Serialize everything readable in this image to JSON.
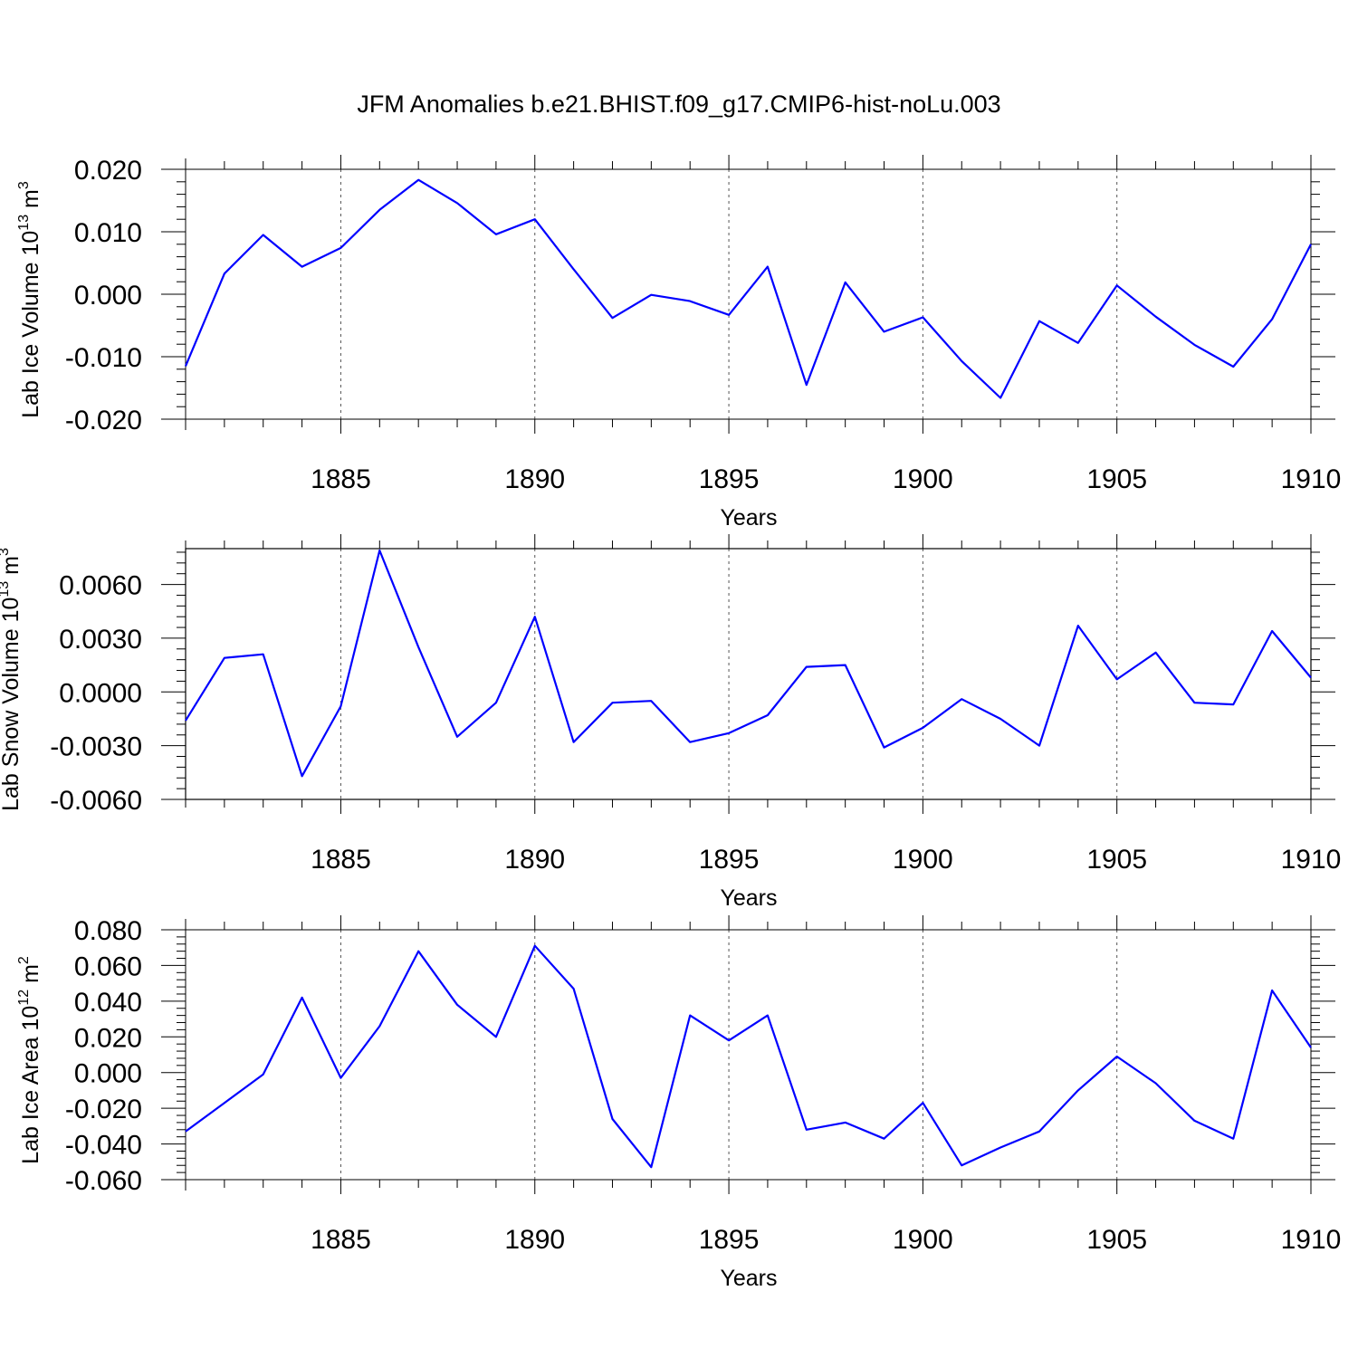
{
  "title": "JFM Anomalies b.e21.BHIST.f09_g17.CMIP6-hist-noLu.003",
  "colors": {
    "series": "#0000ff",
    "axis": "#000000",
    "grid": "#555555"
  },
  "chart_data": [
    {
      "type": "line",
      "xlabel": "Years",
      "ylabel_main": "Lab Ice Volume 10",
      "ylabel_exp": "13",
      "ylabel_unit": " m",
      "ylabel_unit_exp": "3",
      "xlim": [
        1881,
        1910
      ],
      "ylim": [
        -0.02,
        0.02
      ],
      "yticks": [
        "-0.020",
        "-0.010",
        "0.000",
        "0.010",
        "0.020"
      ],
      "ytick_values": [
        -0.02,
        -0.01,
        0.0,
        0.01,
        0.02
      ],
      "xticks": [
        "1885",
        "1890",
        "1895",
        "1900",
        "1905",
        "1910"
      ],
      "xtick_values": [
        1885,
        1890,
        1895,
        1900,
        1905,
        1910
      ],
      "grid_x": [
        1885,
        1890,
        1895,
        1900,
        1905
      ],
      "x": [
        1881,
        1882,
        1883,
        1884,
        1885,
        1886,
        1887,
        1888,
        1889,
        1890,
        1891,
        1892,
        1893,
        1894,
        1895,
        1896,
        1897,
        1898,
        1899,
        1900,
        1901,
        1902,
        1903,
        1904,
        1905,
        1906,
        1907,
        1908,
        1909,
        1910
      ],
      "values": [
        -0.0115,
        0.0033,
        0.0095,
        0.0044,
        0.0074,
        0.0135,
        0.0183,
        0.0146,
        0.0096,
        0.012,
        0.004,
        -0.0038,
        -0.0001,
        -0.0011,
        -0.0033,
        0.0044,
        -0.0145,
        0.0019,
        -0.006,
        -0.0037,
        -0.0107,
        -0.0166,
        -0.0043,
        -0.0078,
        0.0014,
        -0.0036,
        -0.0081,
        -0.0116,
        -0.004,
        0.008
      ]
    },
    {
      "type": "line",
      "xlabel": "Years",
      "ylabel_main": "Lab Snow Volume 10",
      "ylabel_exp": "13",
      "ylabel_unit": " m",
      "ylabel_unit_exp": "3",
      "xlim": [
        1881,
        1910
      ],
      "ylim": [
        -0.006,
        0.008
      ],
      "yticks": [
        "-0.0060",
        "-0.0030",
        "0.0000",
        "0.0030",
        "0.0060"
      ],
      "ytick_values": [
        -0.006,
        -0.003,
        0.0,
        0.003,
        0.006
      ],
      "xticks": [
        "1885",
        "1890",
        "1895",
        "1900",
        "1905",
        "1910"
      ],
      "xtick_values": [
        1885,
        1890,
        1895,
        1900,
        1905,
        1910
      ],
      "grid_x": [
        1885,
        1890,
        1895,
        1900,
        1905
      ],
      "x": [
        1881,
        1882,
        1883,
        1884,
        1885,
        1886,
        1887,
        1888,
        1889,
        1890,
        1891,
        1892,
        1893,
        1894,
        1895,
        1896,
        1897,
        1898,
        1899,
        1900,
        1901,
        1902,
        1903,
        1904,
        1905,
        1906,
        1907,
        1908,
        1909,
        1910
      ],
      "values": [
        -0.0016,
        0.0019,
        0.0021,
        -0.0047,
        -0.0008,
        0.0079,
        0.0025,
        -0.0025,
        -0.0006,
        0.0042,
        -0.0028,
        -0.0006,
        -0.0005,
        -0.0028,
        -0.0023,
        -0.0013,
        0.0014,
        0.0015,
        -0.0031,
        -0.002,
        -0.0004,
        -0.0015,
        -0.003,
        0.0037,
        0.0007,
        0.0022,
        -0.0006,
        -0.0007,
        0.0034,
        0.0008
      ]
    },
    {
      "type": "line",
      "xlabel": "Years",
      "ylabel_main": "Lab Ice Area 10",
      "ylabel_exp": "12",
      "ylabel_unit": " m",
      "ylabel_unit_exp": "2",
      "xlim": [
        1881,
        1910
      ],
      "ylim": [
        -0.06,
        0.08
      ],
      "yticks": [
        "-0.060",
        "-0.040",
        "-0.020",
        "0.000",
        "0.020",
        "0.040",
        "0.060",
        "0.080"
      ],
      "ytick_values": [
        -0.06,
        -0.04,
        -0.02,
        0.0,
        0.02,
        0.04,
        0.06,
        0.08
      ],
      "xticks": [
        "1885",
        "1890",
        "1895",
        "1900",
        "1905",
        "1910"
      ],
      "xtick_values": [
        1885,
        1890,
        1895,
        1900,
        1905,
        1910
      ],
      "grid_x": [
        1885,
        1890,
        1895,
        1900,
        1905
      ],
      "x": [
        1881,
        1882,
        1883,
        1884,
        1885,
        1886,
        1887,
        1888,
        1889,
        1890,
        1891,
        1892,
        1893,
        1894,
        1895,
        1896,
        1897,
        1898,
        1899,
        1900,
        1901,
        1902,
        1903,
        1904,
        1905,
        1906,
        1907,
        1908,
        1909,
        1910
      ],
      "values": [
        -0.033,
        -0.017,
        -0.001,
        0.042,
        -0.003,
        0.026,
        0.068,
        0.038,
        0.02,
        0.071,
        0.047,
        -0.026,
        -0.053,
        0.032,
        0.018,
        0.032,
        -0.032,
        -0.028,
        -0.037,
        -0.017,
        -0.052,
        -0.042,
        -0.033,
        -0.01,
        0.009,
        -0.006,
        -0.027,
        -0.037,
        0.046,
        0.014
      ]
    }
  ]
}
